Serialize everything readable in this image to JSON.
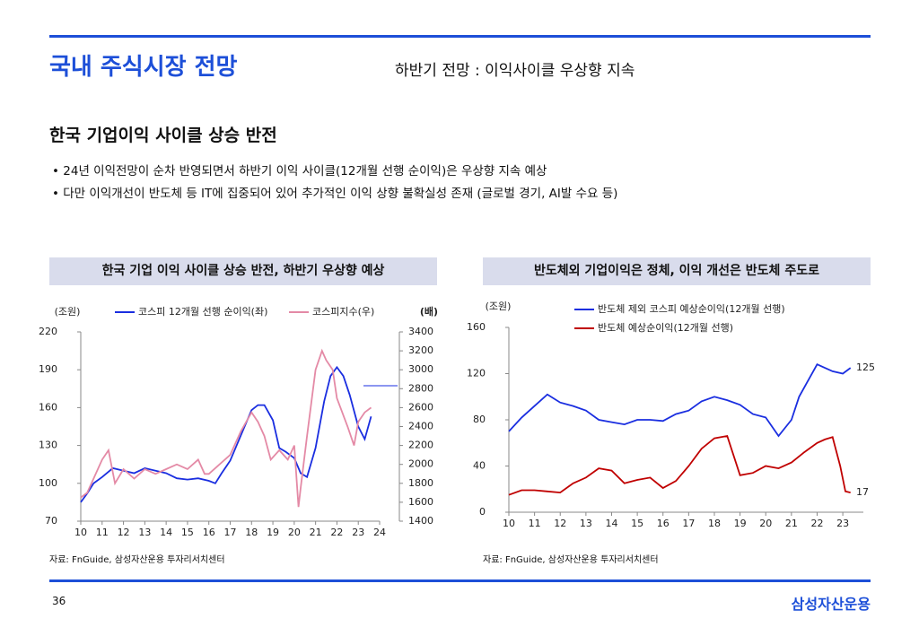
{
  "header": {
    "title": "국내 주식시장 전망",
    "subtitle": "하반기 전망 : 이익사이클 우상향 지속"
  },
  "section": {
    "heading": "한국 기업이익 사이클 상승 반전",
    "bullets": [
      "24년 이익전망이 순차 반영되면서 하반기 이익 사이클(12개월 선행 순이익)은 우상향 지속 예상",
      "다만 이익개선이 반도체 등 IT에 집중되어 있어 추가적인 이익 상향 불확실성 존재 (글로벌 경기, AI발 수요 등)"
    ]
  },
  "chart_data": [
    {
      "type": "line",
      "title": "한국 기업 이익 사이클 상승 반전, 하반기 우상향 예상",
      "ylabel": "(조원)",
      "y2label": "(배)",
      "source": "자료: FnGuide, 삼성자산운용 투자리서치센터",
      "xlim": [
        10,
        24
      ],
      "xticks": [
        10,
        11,
        12,
        13,
        14,
        15,
        16,
        17,
        18,
        19,
        20,
        21,
        22,
        23,
        24
      ],
      "ylim": [
        70,
        220
      ],
      "yticks": [
        70,
        100,
        130,
        160,
        190,
        220
      ],
      "y2lim": [
        1400,
        3400
      ],
      "y2ticks": [
        1400,
        1600,
        1800,
        2000,
        2200,
        2400,
        2600,
        2800,
        3000,
        3200,
        3400
      ],
      "series": [
        {
          "name": "코스피 12개월 선행 순이익(좌)",
          "color": "#1a2ee0",
          "axis": "y",
          "x": [
            10.0,
            10.3,
            10.6,
            11.0,
            11.5,
            12.0,
            12.5,
            13.0,
            13.5,
            14.0,
            14.5,
            15.0,
            15.5,
            16.0,
            16.3,
            16.6,
            17.0,
            17.5,
            18.0,
            18.3,
            18.6,
            19.0,
            19.3,
            19.6,
            20.0,
            20.3,
            20.6,
            21.0,
            21.4,
            21.7,
            22.0,
            22.3,
            22.6,
            23.0,
            23.3,
            23.6
          ],
          "values": [
            85,
            92,
            100,
            105,
            112,
            110,
            108,
            112,
            110,
            108,
            104,
            103,
            104,
            102,
            100,
            108,
            118,
            138,
            158,
            162,
            162,
            150,
            128,
            125,
            120,
            108,
            105,
            128,
            165,
            185,
            192,
            185,
            170,
            145,
            135,
            153
          ]
        },
        {
          "name": "코스피지수(우)",
          "color": "#e48aa6",
          "axis": "y2",
          "x": [
            10.0,
            10.3,
            10.6,
            11.0,
            11.3,
            11.6,
            12.0,
            12.5,
            13.0,
            13.5,
            14.0,
            14.5,
            15.0,
            15.5,
            15.8,
            16.0,
            16.5,
            17.0,
            17.5,
            18.0,
            18.3,
            18.6,
            18.9,
            19.3,
            19.7,
            20.0,
            20.2,
            20.3,
            20.6,
            21.0,
            21.3,
            21.5,
            21.8,
            22.0,
            22.5,
            22.8,
            23.0,
            23.3,
            23.6
          ],
          "values": [
            1650,
            1700,
            1850,
            2050,
            2150,
            1800,
            1950,
            1850,
            1950,
            1900,
            1950,
            2000,
            1950,
            2050,
            1900,
            1900,
            2000,
            2100,
            2350,
            2550,
            2450,
            2300,
            2050,
            2150,
            2050,
            2200,
            1550,
            1750,
            2300,
            3000,
            3200,
            3100,
            3000,
            2700,
            2400,
            2200,
            2450,
            2550,
            2600
          ]
        }
      ]
    },
    {
      "type": "line",
      "title": "반도체외 기업이익은 정체, 이익 개선은 반도체 주도로",
      "ylabel": "(조원)",
      "source": "자료: FnGuide, 삼성자산운용 투자리서치센터",
      "xlim": [
        10,
        23.8
      ],
      "xticks": [
        10,
        11,
        12,
        13,
        14,
        15,
        16,
        17,
        18,
        19,
        20,
        21,
        22,
        23
      ],
      "ylim": [
        0,
        160
      ],
      "yticks": [
        0,
        40,
        80,
        120,
        160
      ],
      "series": [
        {
          "name": "반도체 제외 코스피 예상순이익(12개월 선행)",
          "color": "#1a2ee0",
          "axis": "y",
          "x": [
            10,
            10.5,
            11,
            11.5,
            12,
            12.5,
            13,
            13.5,
            14,
            14.5,
            15,
            15.5,
            16,
            16.5,
            17,
            17.5,
            18,
            18.5,
            19,
            19.5,
            20,
            20.5,
            21,
            21.3,
            21.6,
            22,
            22.3,
            22.6,
            23,
            23.3
          ],
          "values": [
            70,
            82,
            92,
            102,
            95,
            92,
            88,
            80,
            78,
            76,
            80,
            80,
            79,
            85,
            88,
            96,
            100,
            97,
            93,
            85,
            82,
            66,
            80,
            100,
            112,
            128,
            125,
            122,
            120,
            125
          ]
        },
        {
          "name": "반도체 예상순이익(12개월 선행)",
          "color": "#c00000",
          "axis": "y",
          "x": [
            10,
            10.5,
            11,
            11.5,
            12,
            12.5,
            13,
            13.5,
            14,
            14.5,
            15,
            15.5,
            16,
            16.5,
            17,
            17.5,
            18,
            18.5,
            19,
            19.5,
            20,
            20.5,
            21,
            21.5,
            22,
            22.3,
            22.6,
            22.9,
            23.1,
            23.3
          ],
          "values": [
            15,
            19,
            19,
            18,
            17,
            25,
            30,
            38,
            36,
            25,
            28,
            30,
            21,
            27,
            40,
            55,
            64,
            66,
            32,
            34,
            40,
            38,
            43,
            52,
            60,
            63,
            65,
            40,
            18,
            17
          ]
        }
      ]
    }
  ],
  "footer": {
    "page": "36",
    "logo": "삼성자산운용"
  }
}
